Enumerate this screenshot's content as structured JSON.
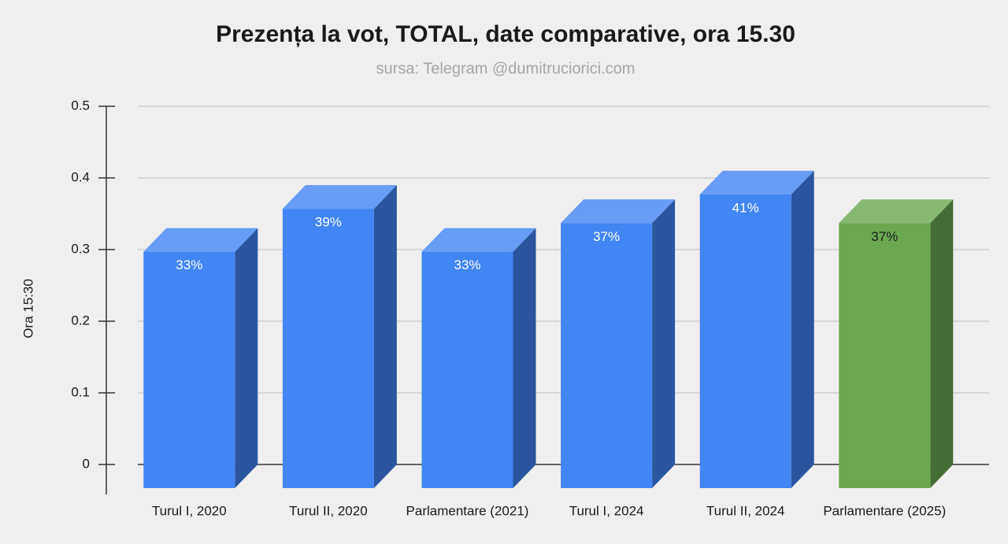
{
  "chart_data": {
    "type": "bar3d",
    "title": "Prezența la vot, TOTAL, date comparative, ora 15.30",
    "subtitle": "sursa: Telegram @dumitruciorici.com",
    "y_label": "Ora 15:30",
    "categories": [
      "Turul I, 2020",
      "Turul II, 2020",
      "Parlamentare (2021)",
      "Turul I, 2024",
      "Turul II, 2024",
      "Parlamentare (2025)"
    ],
    "values": [
      0.33,
      0.39,
      0.33,
      0.37,
      0.41,
      0.37
    ],
    "value_labels": [
      "33%",
      "39%",
      "33%",
      "37%",
      "41%",
      "37%"
    ],
    "colors": [
      "#4285f4",
      "#4285f4",
      "#4285f4",
      "#4285f4",
      "#4285f4",
      "#6aa84f"
    ],
    "label_colors": [
      "#ffffff",
      "#ffffff",
      "#ffffff",
      "#ffffff",
      "#ffffff",
      "#1a1a1a"
    ],
    "ylim": [
      0,
      0.5
    ],
    "yticks": [
      0,
      0.1,
      0.2,
      0.3,
      0.4,
      0.5
    ],
    "grid": true
  }
}
